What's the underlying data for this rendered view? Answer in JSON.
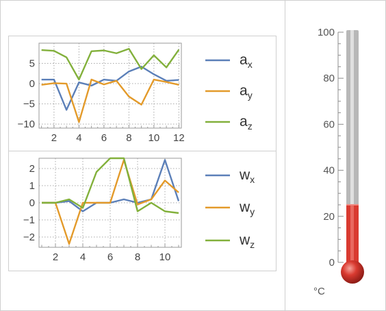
{
  "colors": {
    "blue": "#5b7fb8",
    "orange": "#e39a2a",
    "green": "#82b03b",
    "thermo_red": "#d93a30",
    "thermo_glass": "#b8b8b8"
  },
  "chart_data": [
    {
      "type": "line",
      "x": [
        1,
        2,
        3,
        4,
        5,
        6,
        7,
        8,
        9,
        10,
        11,
        12
      ],
      "series": [
        {
          "name": "a_x",
          "legend_main": "a",
          "legend_sub": "x",
          "color": "#5b7fb8",
          "values": [
            1.0,
            1.0,
            -6.5,
            0.3,
            -0.5,
            1.0,
            0.7,
            3.0,
            4.2,
            2.3,
            0.7,
            0.9
          ]
        },
        {
          "name": "a_y",
          "legend_main": "a",
          "legend_sub": "y",
          "color": "#e39a2a",
          "values": [
            -0.3,
            0.1,
            0.0,
            -9.5,
            1.0,
            -0.2,
            0.7,
            -3.2,
            -5.2,
            1.0,
            0.4,
            -0.3
          ]
        },
        {
          "name": "a_z",
          "legend_main": "a",
          "legend_sub": "z",
          "color": "#82b03b",
          "values": [
            8.3,
            8.1,
            6.5,
            1.0,
            8.0,
            8.2,
            7.5,
            8.6,
            3.6,
            7.0,
            4.0,
            8.4
          ]
        }
      ],
      "xlim": [
        0.8,
        12.2
      ],
      "ylim": [
        -11,
        10
      ],
      "xticks": [
        2,
        4,
        6,
        8,
        10,
        12
      ],
      "yticks": [
        5,
        0,
        -5,
        -10
      ],
      "ytick_labels": [
        "5",
        "0",
        "−5",
        "−10"
      ],
      "grid": "dotted"
    },
    {
      "type": "line",
      "x": [
        1,
        2,
        3,
        4,
        5,
        6,
        7,
        8,
        9,
        10,
        11
      ],
      "series": [
        {
          "name": "w_x",
          "legend_main": "w",
          "legend_sub": "x",
          "color": "#5b7fb8",
          "values": [
            0.0,
            0.0,
            0.1,
            -0.5,
            0.0,
            0.0,
            0.2,
            0.0,
            0.2,
            2.5,
            0.1
          ]
        },
        {
          "name": "w_y",
          "legend_main": "w",
          "legend_sub": "y",
          "color": "#e39a2a",
          "values": [
            0.0,
            0.0,
            -2.4,
            0.0,
            0.0,
            0.0,
            2.5,
            -0.1,
            0.2,
            1.3,
            0.6
          ]
        },
        {
          "name": "w_z",
          "legend_main": "w",
          "legend_sub": "z",
          "color": "#82b03b",
          "values": [
            0.0,
            0.0,
            0.2,
            -0.3,
            1.8,
            2.6,
            2.6,
            -0.5,
            0.0,
            -0.5,
            -0.6
          ]
        }
      ],
      "xlim": [
        0.8,
        11.2
      ],
      "ylim": [
        -2.6,
        2.6
      ],
      "xticks": [
        2,
        4,
        6,
        8,
        10
      ],
      "yticks": [
        2,
        1,
        0,
        -1,
        -2
      ],
      "ytick_labels": [
        "2",
        "1",
        "0",
        "−1",
        "−2"
      ],
      "grid": "dotted"
    }
  ],
  "thermometer": {
    "value": 25,
    "min": 0,
    "max": 100,
    "major_ticks": [
      0,
      20,
      40,
      60,
      80,
      100
    ],
    "minor_step": 5,
    "unit_label": "°C"
  }
}
